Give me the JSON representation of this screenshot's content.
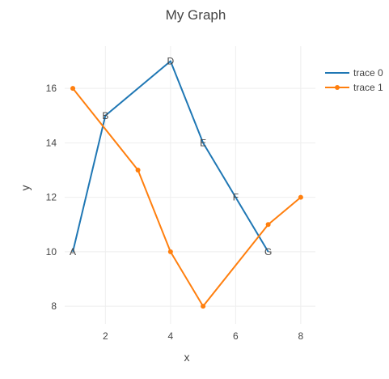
{
  "chart_data": {
    "type": "line",
    "title": "My Graph",
    "xlabel": "x",
    "ylabel": "y",
    "xlim": [
      0.75,
      8.45
    ],
    "ylim": [
      7.35,
      17.55
    ],
    "x_ticks": [
      2,
      4,
      6,
      8
    ],
    "y_ticks": [
      8,
      10,
      12,
      14,
      16
    ],
    "grid": true,
    "legend_position": "top-right",
    "series": [
      {
        "name": "trace 0",
        "color": "#1f77b4",
        "mode": "lines+text",
        "x": [
          1,
          2,
          4,
          5,
          6,
          7
        ],
        "y": [
          10,
          15,
          17,
          14,
          12,
          10
        ],
        "text": [
          "A",
          "B",
          "D",
          "E",
          "F",
          "G"
        ]
      },
      {
        "name": "trace 1",
        "color": "#ff7f0e",
        "mode": "lines+markers",
        "x": [
          1,
          3,
          4,
          5,
          7,
          8
        ],
        "y": [
          16,
          13,
          10,
          8,
          11,
          12
        ]
      }
    ]
  }
}
